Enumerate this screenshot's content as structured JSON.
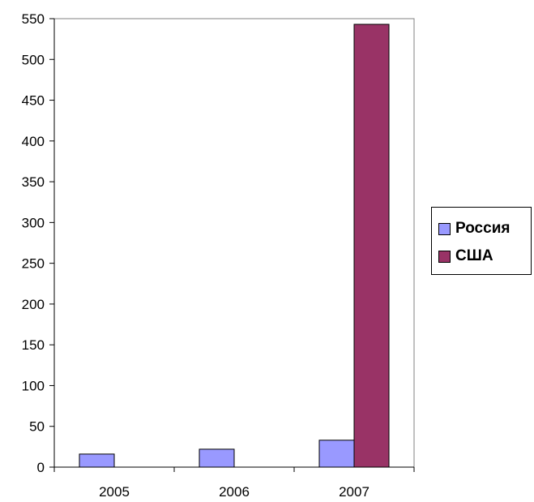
{
  "chart_data": {
    "type": "bar",
    "categories": [
      "2005",
      "2006",
      "2007"
    ],
    "series": [
      {
        "name": "Россия",
        "color": "#9999ff",
        "values": [
          16,
          22,
          33
        ]
      },
      {
        "name": "США",
        "color": "#993366",
        "values": [
          0,
          0,
          543
        ]
      }
    ],
    "ylim": [
      0,
      550
    ],
    "yticks": [
      "0",
      "50",
      "100",
      "150",
      "200",
      "250",
      "300",
      "350",
      "400",
      "450",
      "500",
      "550"
    ],
    "grid": false,
    "legend": "right",
    "title": "",
    "xlabel": "",
    "ylabel": ""
  }
}
